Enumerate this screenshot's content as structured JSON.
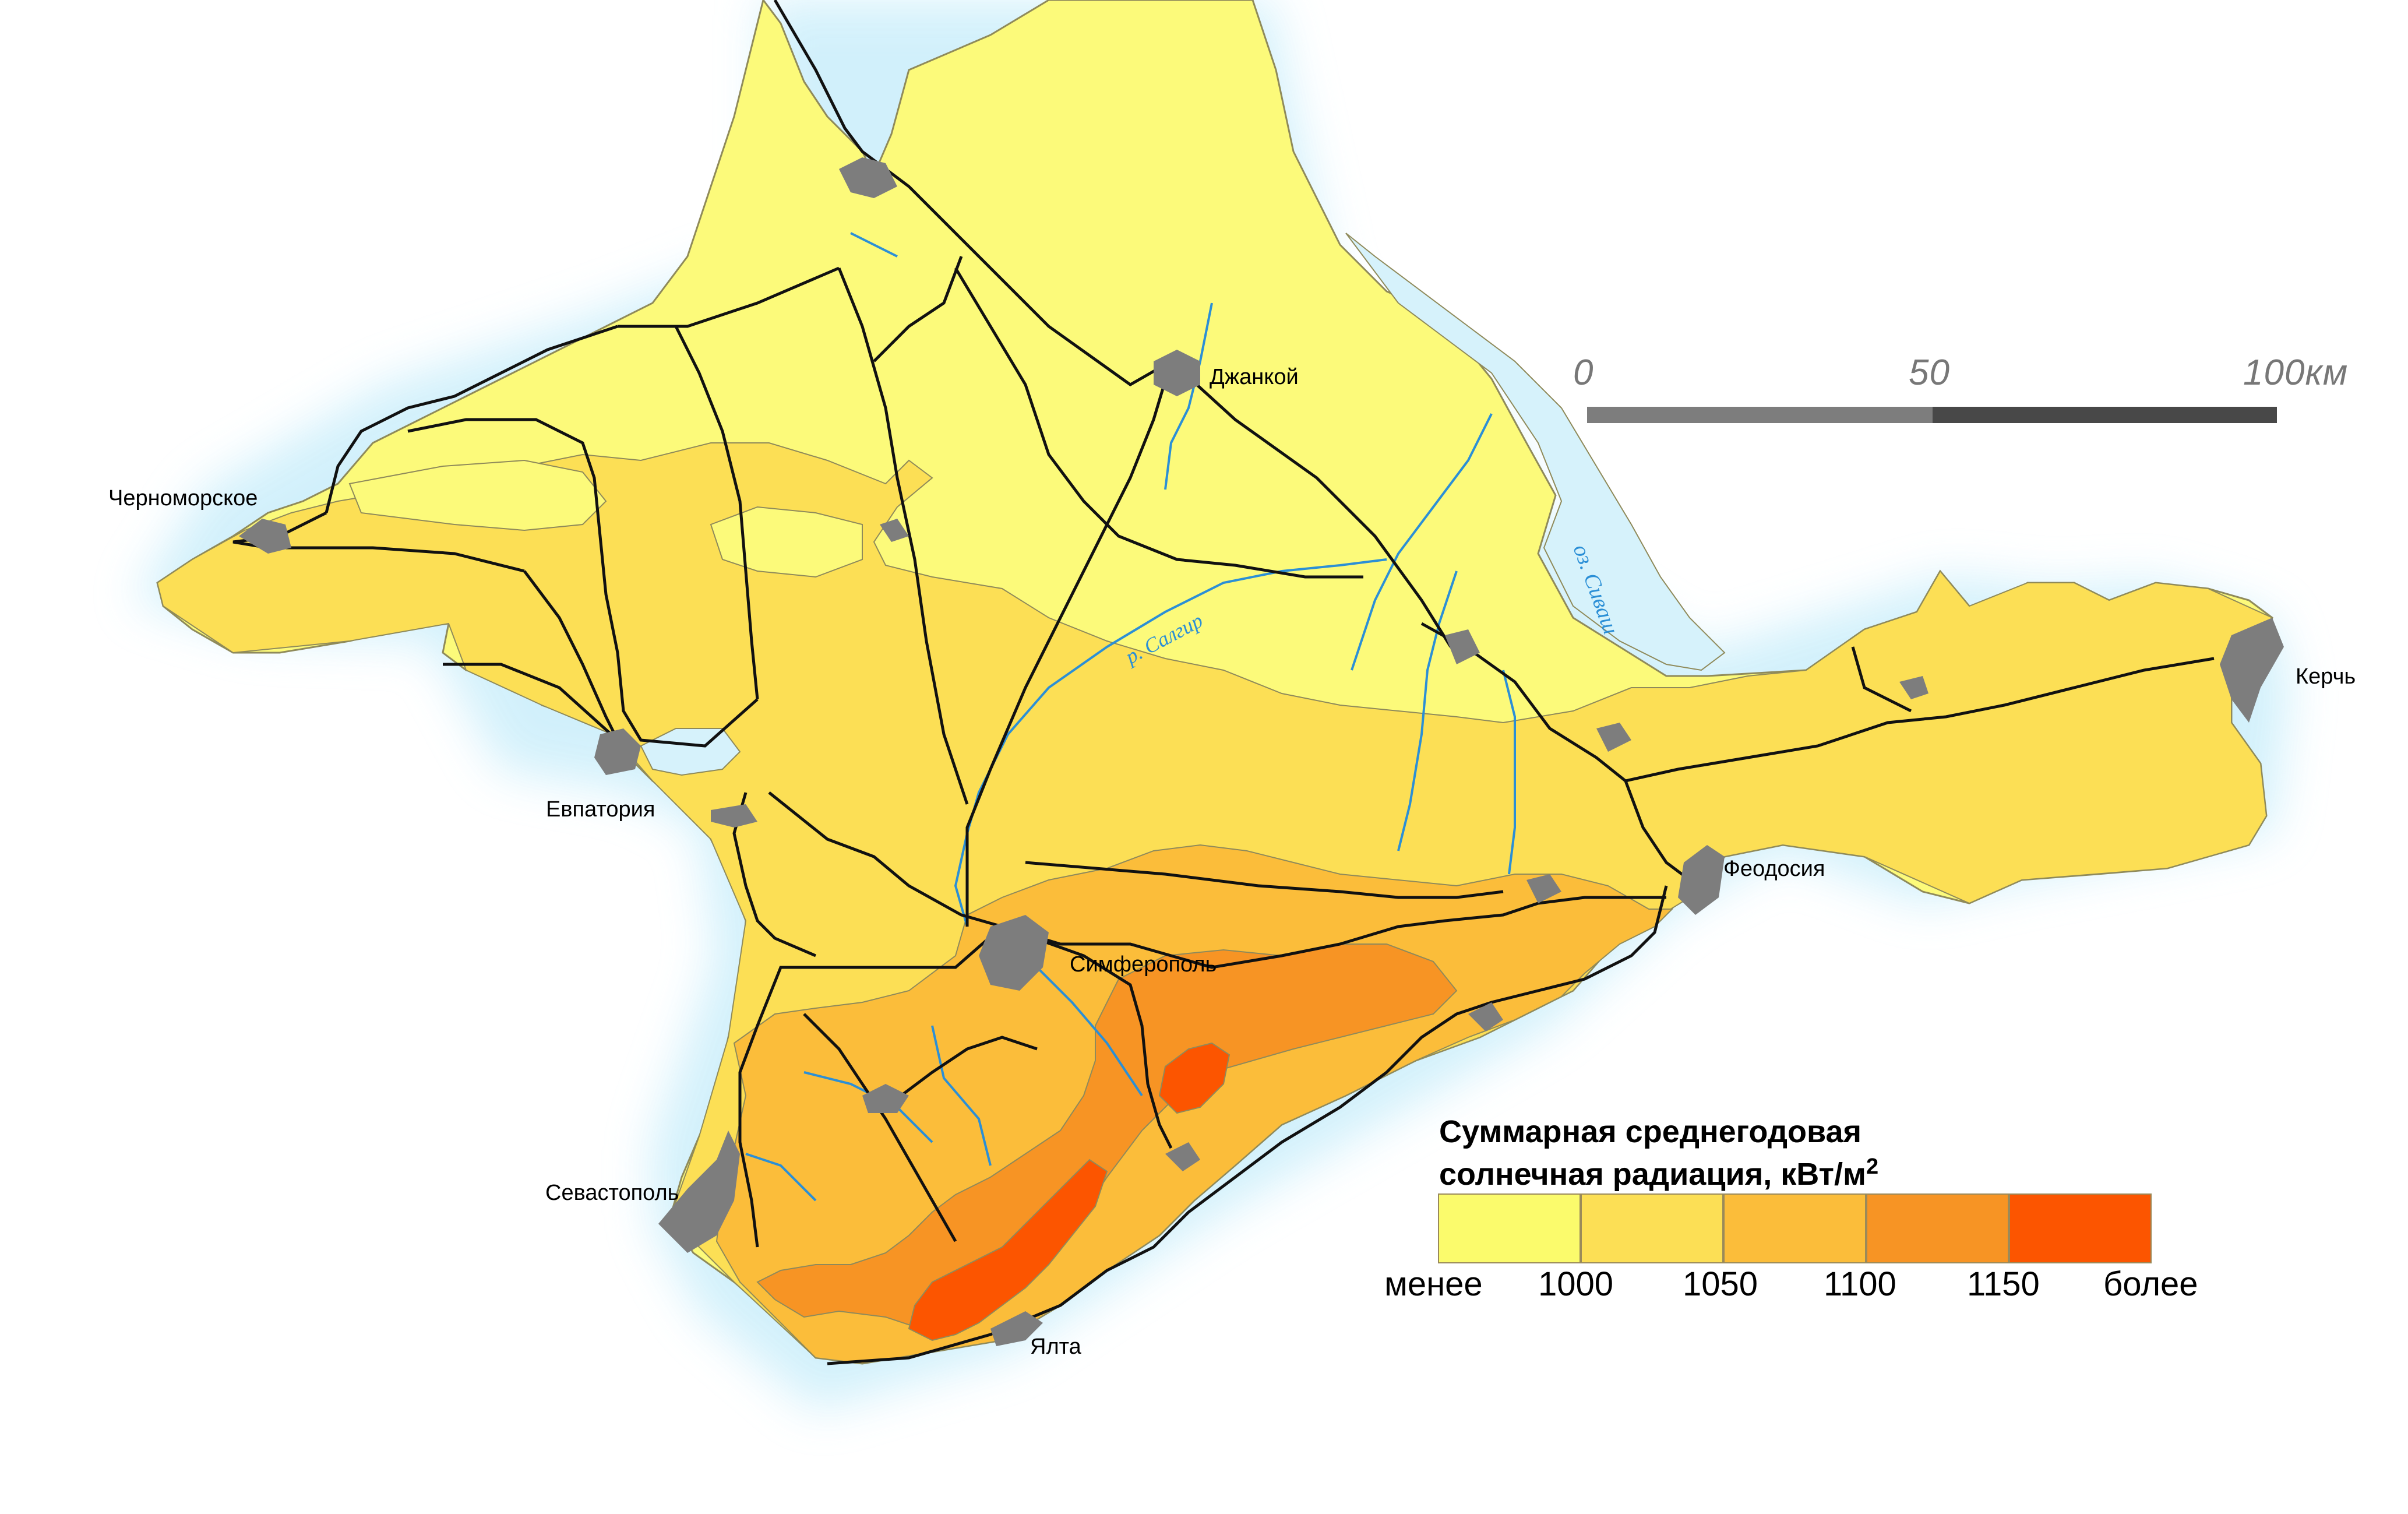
{
  "cities": [
    {
      "name": "Джанкой"
    },
    {
      "name": "Черноморское"
    },
    {
      "name": "Евпатория"
    },
    {
      "name": "Симферополь"
    },
    {
      "name": "Феодосия"
    },
    {
      "name": "Керчь"
    },
    {
      "name": "Севастополь"
    },
    {
      "name": "Ялта"
    }
  ],
  "water_labels": {
    "lake": "оз. Сиваш",
    "river": "р. Салгир"
  },
  "scale": {
    "ticks": [
      "0",
      "50",
      "100"
    ],
    "unit": "км"
  },
  "legend": {
    "title_line1": "Суммарная среднегодовая",
    "title_line2": "солнечная радиация, кВт/м",
    "title_sup": "2",
    "ticks": [
      "менее",
      "1000",
      "1050",
      "1100",
      "1150",
      "более"
    ],
    "colors": [
      "#fbfb6c",
      "#fcdf55",
      "#fbbd3a",
      "#f79424",
      "#fc5500"
    ]
  },
  "colors": {
    "sea_glow": "#d6f2fb",
    "roads": "#111111",
    "rivers": "#2b8fd6",
    "cities": "#7d7d7d"
  }
}
